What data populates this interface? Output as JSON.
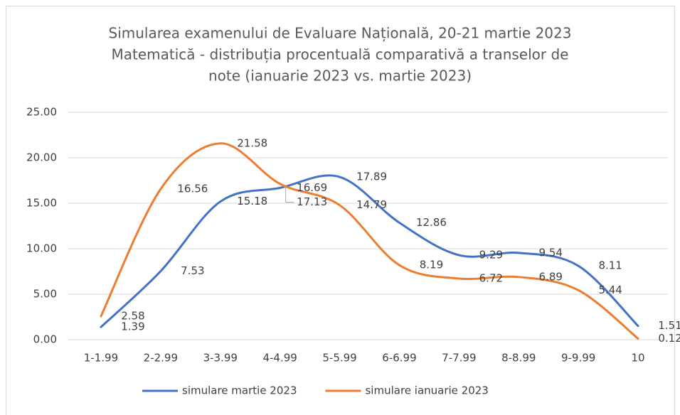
{
  "chart_data": {
    "type": "line",
    "title_lines": [
      "Simularea examenului de Evaluare Națională, 20-21 martie 2023",
      "Matematică - distribuția procentuală comparativă a transelor de",
      "note (ianuarie 2023 vs. martie 2023)"
    ],
    "categories": [
      "1-1.99",
      "2-2.99",
      "3-3.99",
      "4-4.99",
      "5-5.99",
      "6-6.99",
      "7-7.99",
      "8-8.99",
      "9-9.99",
      "10"
    ],
    "series": [
      {
        "name": "simulare martie 2023",
        "color": "#4472c4",
        "values": [
          1.39,
          7.53,
          15.18,
          16.69,
          17.89,
          12.86,
          9.29,
          9.54,
          8.11,
          1.51
        ]
      },
      {
        "name": "simulare ianuarie 2023",
        "color": "#ed7d31",
        "values": [
          2.58,
          16.56,
          21.58,
          17.13,
          14.79,
          8.19,
          6.72,
          6.89,
          5.44,
          0.12
        ]
      }
    ],
    "ylim": [
      0,
      25
    ],
    "yticks": [
      {
        "value": 0,
        "label": "0.00"
      },
      {
        "value": 5,
        "label": "5.00"
      },
      {
        "value": 10,
        "label": "10.00"
      },
      {
        "value": 15,
        "label": "15.00"
      },
      {
        "value": 20,
        "label": "20.00"
      },
      {
        "value": 25,
        "label": "25.00"
      }
    ],
    "grid": true,
    "smooth": true,
    "legend": "bottom"
  }
}
